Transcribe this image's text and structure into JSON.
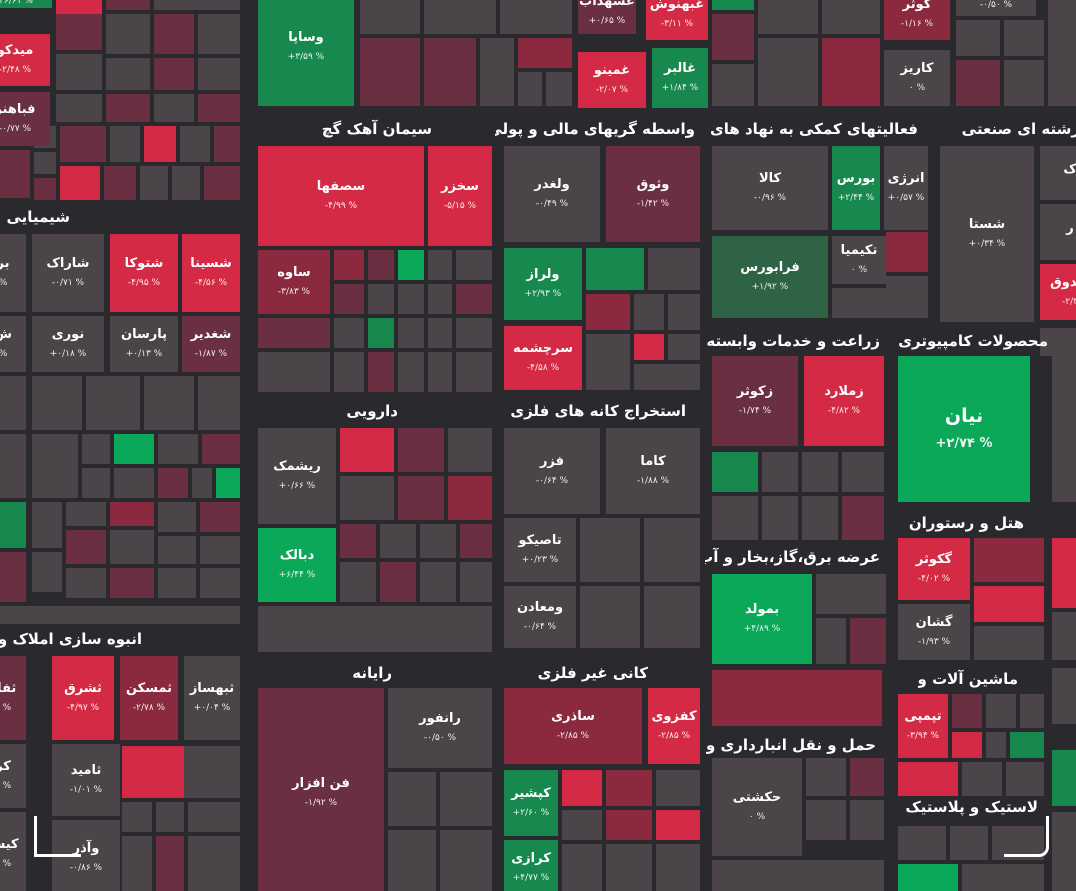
{
  "colors": {
    "background": "#2a2a2e",
    "strong_green": "#0ca85a",
    "green": "#17894f",
    "dark_green": "#2f6345",
    "neutral": "#4b4449",
    "dark_red": "#6a2f40",
    "red": "#8b2a3f",
    "strong_red": "#d52a45"
  },
  "sections": [
    {
      "id": "chem",
      "title": "شیمیایی"
    },
    {
      "id": "cement",
      "title": "سیمان آهک گچ"
    },
    {
      "id": "finance",
      "title": "واسطه گریهای مالی و پولی"
    },
    {
      "id": "aux",
      "title": "فعالیتهای کمکی به نهاد های"
    },
    {
      "id": "multi",
      "title": "رشته ای صنعتی"
    },
    {
      "id": "agri",
      "title": "زراعت و خدمات وابسته"
    },
    {
      "id": "computer",
      "title": "محصولات کامپیوتری"
    },
    {
      "id": "pharma",
      "title": "دارویی"
    },
    {
      "id": "metalmine",
      "title": "استخراج کانه های فلزی"
    },
    {
      "id": "hotel",
      "title": "هتل و رستوران"
    },
    {
      "id": "power",
      "title": "عرضه برق،گاز،بخار و آب"
    },
    {
      "id": "construction",
      "title": "انبوه سازی املاک و م"
    },
    {
      "id": "software",
      "title": "رایانه"
    },
    {
      "id": "nonmetal",
      "title": "کانی غیر فلزی"
    },
    {
      "id": "machinery",
      "title": "ماشین آلات و"
    },
    {
      "id": "transport",
      "title": "حمل و نقل انبارداری و"
    },
    {
      "id": "rubber",
      "title": "لاستیک و پلاستیک"
    }
  ],
  "tiles": [
    {
      "id": "t0",
      "symbol": "",
      "change": "۴۶/۶۱ %"
    },
    {
      "id": "t1",
      "symbol": "میدکو",
      "change": "-۲/۴۸ %"
    },
    {
      "id": "t2",
      "symbol": "فباهنر",
      "change": "-۰/۷۷ %"
    },
    {
      "id": "t3",
      "symbol": "وساپا",
      "change": "+۳/۵۹ %"
    },
    {
      "id": "t4",
      "symbol": "غشهداب",
      "change": "+۰/۶۵ %"
    },
    {
      "id": "t5",
      "symbol": "غبهنوش",
      "change": "-۳/۱۱ %"
    },
    {
      "id": "t6",
      "symbol": "غمینو",
      "change": "-۲/۰۷ %"
    },
    {
      "id": "t7",
      "symbol": "غالبر",
      "change": "+۱/۸۴ %"
    },
    {
      "id": "t8",
      "symbol": "کوثر",
      "change": "-۱/۱۶ %"
    },
    {
      "id": "t9",
      "symbol": "کاریز",
      "change": "۰ %"
    },
    {
      "id": "t10",
      "symbol": "",
      "change": "-۰/۵۰ %"
    },
    {
      "id": "t11",
      "symbol": "سصفها",
      "change": "-۴/۹۹ %"
    },
    {
      "id": "t12",
      "symbol": "سخزر",
      "change": "-۵/۱۵ %"
    },
    {
      "id": "t13",
      "symbol": "ساوه",
      "change": "-۳/۸۳ %"
    },
    {
      "id": "t14",
      "symbol": "ولغدر",
      "change": "-۰/۴۹ %"
    },
    {
      "id": "t15",
      "symbol": "وثوق",
      "change": "-۱/۴۲ %"
    },
    {
      "id": "t16",
      "symbol": "ولراز",
      "change": "+۲/۹۳ %"
    },
    {
      "id": "t17",
      "symbol": "سرچشمه",
      "change": "-۴/۵۸ %"
    },
    {
      "id": "t18",
      "symbol": "کالا",
      "change": "-۰/۹۶ %"
    },
    {
      "id": "t19",
      "symbol": "بورس",
      "change": "+۲/۴۴ %"
    },
    {
      "id": "t20",
      "symbol": "انرژی",
      "change": "+۰/۵۷ %"
    },
    {
      "id": "t21",
      "symbol": "فرابورس",
      "change": "+۱/۹۲ %"
    },
    {
      "id": "t22",
      "symbol": "تکیمیا",
      "change": "۰ %"
    },
    {
      "id": "t23",
      "symbol": "شستا",
      "change": "+۰/۳۴ %"
    },
    {
      "id": "t24",
      "symbol": "ک",
      "change": ""
    },
    {
      "id": "t25",
      "symbol": "ر",
      "change": ""
    },
    {
      "id": "t26",
      "symbol": "صدوق",
      "change": "-۲/۳"
    },
    {
      "id": "t27",
      "symbol": "بر",
      "change": "%"
    },
    {
      "id": "t28",
      "symbol": "شاراک",
      "change": "-۰/۷۱ %"
    },
    {
      "id": "t29",
      "symbol": "شتوکا",
      "change": "-۴/۹۵ %"
    },
    {
      "id": "t30",
      "symbol": "شسینا",
      "change": "-۴/۵۶ %"
    },
    {
      "id": "t31",
      "symbol": "ش",
      "change": "%"
    },
    {
      "id": "t32",
      "symbol": "نوری",
      "change": "+۰/۱۸ %"
    },
    {
      "id": "t33",
      "symbol": "پارسان",
      "change": "+۰/۱۳ %"
    },
    {
      "id": "t34",
      "symbol": "شغدیر",
      "change": "-۱/۸۷ %"
    },
    {
      "id": "t35",
      "symbol": "ریشمک",
      "change": "+۰/۶۶ %"
    },
    {
      "id": "t36",
      "symbol": "دبالک",
      "change": "+۶/۴۴ %"
    },
    {
      "id": "t37",
      "symbol": "فزر",
      "change": "-۰/۶۴ %"
    },
    {
      "id": "t38",
      "symbol": "کاما",
      "change": "-۱/۸۸ %"
    },
    {
      "id": "t39",
      "symbol": "تاصیکو",
      "change": "+۰/۲۳ %"
    },
    {
      "id": "t40",
      "symbol": "ومعادن",
      "change": "-۰/۶۴ %"
    },
    {
      "id": "t41",
      "symbol": "زکوثر",
      "change": "-۱/۷۴ %"
    },
    {
      "id": "t42",
      "symbol": "زملارد",
      "change": "-۴/۸۲ %"
    },
    {
      "id": "t43",
      "symbol": "نیان",
      "change": "+۲/۷۴ %"
    },
    {
      "id": "t44",
      "symbol": "گکوثر",
      "change": "-۴/۰۲ %"
    },
    {
      "id": "t45",
      "symbol": "گشان",
      "change": "-۱/۹۳ %"
    },
    {
      "id": "t46",
      "symbol": "بمولد",
      "change": "+۴/۸۹ %"
    },
    {
      "id": "t47",
      "symbol": "ثفار",
      "change": "۹ %"
    },
    {
      "id": "t48",
      "symbol": "ثشرق",
      "change": "-۴/۹۷ %"
    },
    {
      "id": "t49",
      "symbol": "ثمسکن",
      "change": "-۲/۷۸ %"
    },
    {
      "id": "t50",
      "symbol": "ثبهساز",
      "change": "+۰/۰۴ %"
    },
    {
      "id": "t51",
      "symbol": "کر",
      "change": "۹ %"
    },
    {
      "id": "t52",
      "symbol": "ثامید",
      "change": "-۱/۰۱ %"
    },
    {
      "id": "t53",
      "symbol": "کیس",
      "change": "۴ %"
    },
    {
      "id": "t54",
      "symbol": "وآذر",
      "change": "-۰/۸۶ %"
    },
    {
      "id": "t55",
      "symbol": "رانفور",
      "change": "-۰/۵۰ %"
    },
    {
      "id": "t56",
      "symbol": "فن افزار",
      "change": "-۱/۹۲ %"
    },
    {
      "id": "t57",
      "symbol": "ساذری",
      "change": "-۲/۸۵ %"
    },
    {
      "id": "t58",
      "symbol": "کفزوی",
      "change": "-۲/۸۵ %"
    },
    {
      "id": "t59",
      "symbol": "کپشیر",
      "change": "+۲/۶۰ %"
    },
    {
      "id": "t60",
      "symbol": "کرازی",
      "change": "+۴/۷۷ %"
    },
    {
      "id": "t61",
      "symbol": "تپمپی",
      "change": "-۳/۹۴ %"
    },
    {
      "id": "t62",
      "symbol": "حکشتی",
      "change": "۰ %"
    }
  ]
}
